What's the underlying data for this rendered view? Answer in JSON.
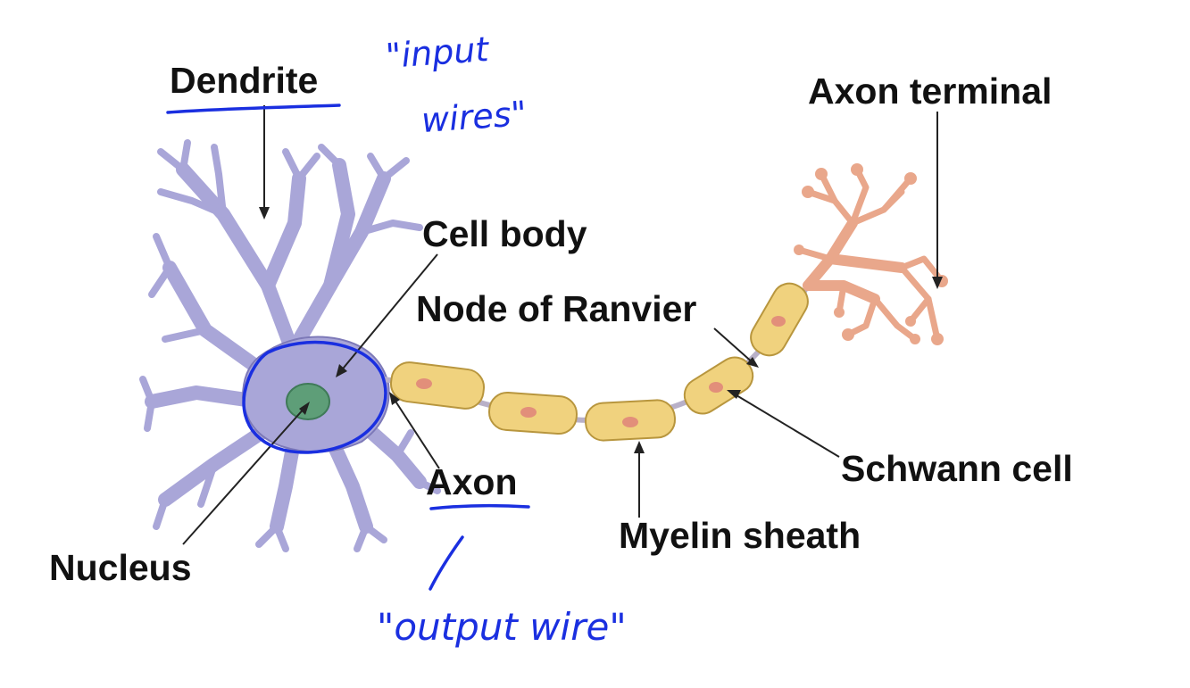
{
  "labels": {
    "dendrite": "Dendrite",
    "axon_terminal": "Axon terminal",
    "cell_body": "Cell body",
    "node_of_ranvier": "Node of Ranvier",
    "axon": "Axon",
    "schwann_cell": "Schwann cell",
    "myelin_sheath": "Myelin sheath",
    "nucleus": "Nucleus"
  },
  "annotations": {
    "input_line1": "\"input",
    "input_line2": "wires\"",
    "output": "\"output wire\""
  },
  "colors": {
    "dendrite_fill": "#a9a6d8",
    "dendrite_stroke": "#7d79b8",
    "nucleus_fill": "#5e9e78",
    "myelin_fill": "#f0d27e",
    "myelin_stroke": "#b8963e",
    "myelin_dot": "#e28f7a",
    "terminal_fill": "#e9a78b",
    "terminal_stroke": "#c27d66",
    "annotation_ink": "#1a2fe0",
    "label_text": "#111111"
  }
}
